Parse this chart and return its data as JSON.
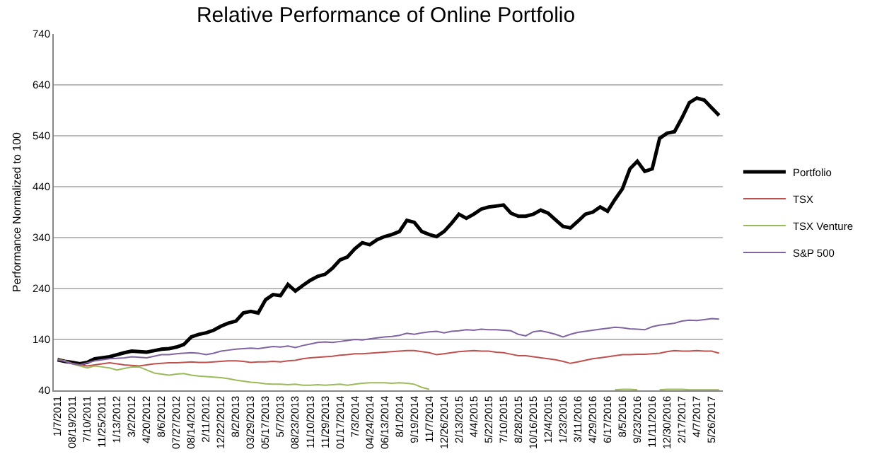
{
  "chart_data": {
    "type": "line",
    "title": "Relative Performance of Online Portfolio",
    "ylabel": "Performance Normalized to 100",
    "categories": [
      "1/7/2011",
      null,
      "08/19/2011",
      null,
      "7/10/2011",
      null,
      "11/25/2011",
      null,
      "1/13/2012",
      null,
      "3/2/2012",
      null,
      "4/20/2012",
      null,
      "8/6/2012",
      null,
      "07/27/2012",
      null,
      "08/14/2012",
      null,
      "2/11/2012",
      null,
      "12/22/2012",
      null,
      "8/2/2013",
      null,
      "03/29/2013",
      null,
      "05/17/2013",
      null,
      "5/7/2013",
      null,
      "08/23/2013",
      null,
      "11/10/2013",
      null,
      "11/29/2013",
      null,
      "01/17/2014",
      null,
      "7/3/2014",
      null,
      "04/24/2014",
      null,
      "06/13/2014",
      null,
      "8/1/2014",
      null,
      "9/19/2014",
      null,
      "11/7/2014",
      null,
      "12/26/2014",
      null,
      "2/13/2015",
      null,
      "4/4/2015",
      null,
      "5/22/2015",
      null,
      "7/10/2015",
      null,
      "8/28/2015",
      null,
      "10/16/2015",
      null,
      "12/4/2015",
      null,
      "1/23/2016",
      null,
      "3/11/2016",
      null,
      "4/29/2016",
      null,
      "6/17/2016",
      null,
      "8/5/2016",
      null,
      "9/23/2016",
      null,
      "11/11/2016",
      null,
      "12/30/2016",
      null,
      "2/17/2017",
      null,
      "4/7/2017",
      null,
      "5/26/2017",
      null
    ],
    "series": [
      {
        "name": "Portfolio",
        "color": "#000000",
        "values": [
          100,
          97,
          95,
          92,
          95,
          102,
          104,
          106,
          110,
          114,
          117,
          116,
          115,
          118,
          121,
          122,
          125,
          130,
          145,
          150,
          153,
          158,
          166,
          172,
          176,
          192,
          195,
          192,
          218,
          228,
          226,
          248,
          235,
          246,
          256,
          264,
          268,
          280,
          296,
          302,
          318,
          330,
          326,
          336,
          342,
          346,
          352,
          374,
          370,
          352,
          346,
          342,
          352,
          368,
          386,
          378,
          386,
          396,
          400,
          402,
          404,
          388,
          382,
          382,
          386,
          394,
          388,
          375,
          362,
          359,
          372,
          386,
          390,
          400,
          392,
          415,
          436,
          475,
          490,
          470,
          475,
          535,
          545,
          548,
          575,
          605,
          614,
          610,
          595,
          580
        ]
      },
      {
        "name": "TSX",
        "color": "#c0504d",
        "values": [
          100,
          98,
          93,
          90,
          88,
          90,
          92,
          94,
          92,
          90,
          89,
          88,
          90,
          92,
          93,
          94,
          94,
          95,
          96,
          95,
          95,
          96,
          97,
          98,
          98,
          97,
          95,
          96,
          96,
          97,
          96,
          98,
          99,
          102,
          104,
          105,
          106,
          107,
          109,
          110,
          112,
          112,
          113,
          114,
          115,
          116,
          117,
          118,
          118,
          116,
          114,
          110,
          112,
          114,
          116,
          117,
          118,
          117,
          117,
          115,
          114,
          111,
          108,
          108,
          106,
          104,
          102,
          100,
          97,
          93,
          96,
          99,
          102,
          104,
          106,
          108,
          110,
          110,
          111,
          111,
          112,
          113,
          116,
          118,
          117,
          117,
          118,
          117,
          117,
          113
        ]
      },
      {
        "name": "TSX Venture",
        "color": "#9bbb59",
        "values": [
          100,
          98,
          92,
          88,
          84,
          88,
          86,
          84,
          80,
          83,
          86,
          86,
          80,
          74,
          72,
          70,
          72,
          73,
          70,
          68,
          67,
          66,
          65,
          63,
          60,
          58,
          56,
          55,
          53,
          52,
          52,
          51,
          52,
          50,
          50,
          51,
          50,
          51,
          52,
          50,
          52,
          54,
          55,
          55,
          55,
          54,
          55,
          54,
          52,
          46,
          42,
          null,
          null,
          null,
          null,
          null,
          null,
          null,
          null,
          null,
          null,
          null,
          null,
          null,
          null,
          null,
          null,
          null,
          null,
          null,
          null,
          null,
          null,
          null,
          null,
          41,
          42,
          42,
          41,
          null,
          null,
          41,
          42,
          42,
          42,
          41,
          41,
          41,
          41,
          41
        ]
      },
      {
        "name": "S&P 500",
        "color": "#8064a2",
        "values": [
          100,
          97,
          92,
          90,
          94,
          98,
          100,
          102,
          103,
          104,
          106,
          105,
          104,
          107,
          110,
          110,
          112,
          113,
          114,
          113,
          110,
          113,
          117,
          119,
          121,
          122,
          123,
          122,
          124,
          126,
          125,
          127,
          124,
          128,
          131,
          134,
          135,
          134,
          136,
          138,
          140,
          139,
          141,
          143,
          145,
          146,
          148,
          152,
          150,
          153,
          155,
          156,
          153,
          156,
          157,
          159,
          158,
          160,
          159,
          159,
          158,
          157,
          150,
          147,
          155,
          157,
          154,
          150,
          145,
          150,
          154,
          156,
          158,
          160,
          162,
          164,
          163,
          161,
          160,
          159,
          165,
          168,
          170,
          172,
          176,
          178,
          177,
          179,
          181,
          180
        ]
      }
    ],
    "ylim": [
      40,
      740
    ],
    "yticks": [
      40,
      140,
      240,
      340,
      440,
      540,
      640,
      740
    ],
    "grid": "y",
    "legend": "right",
    "marker": "none",
    "line_style": "solid"
  }
}
